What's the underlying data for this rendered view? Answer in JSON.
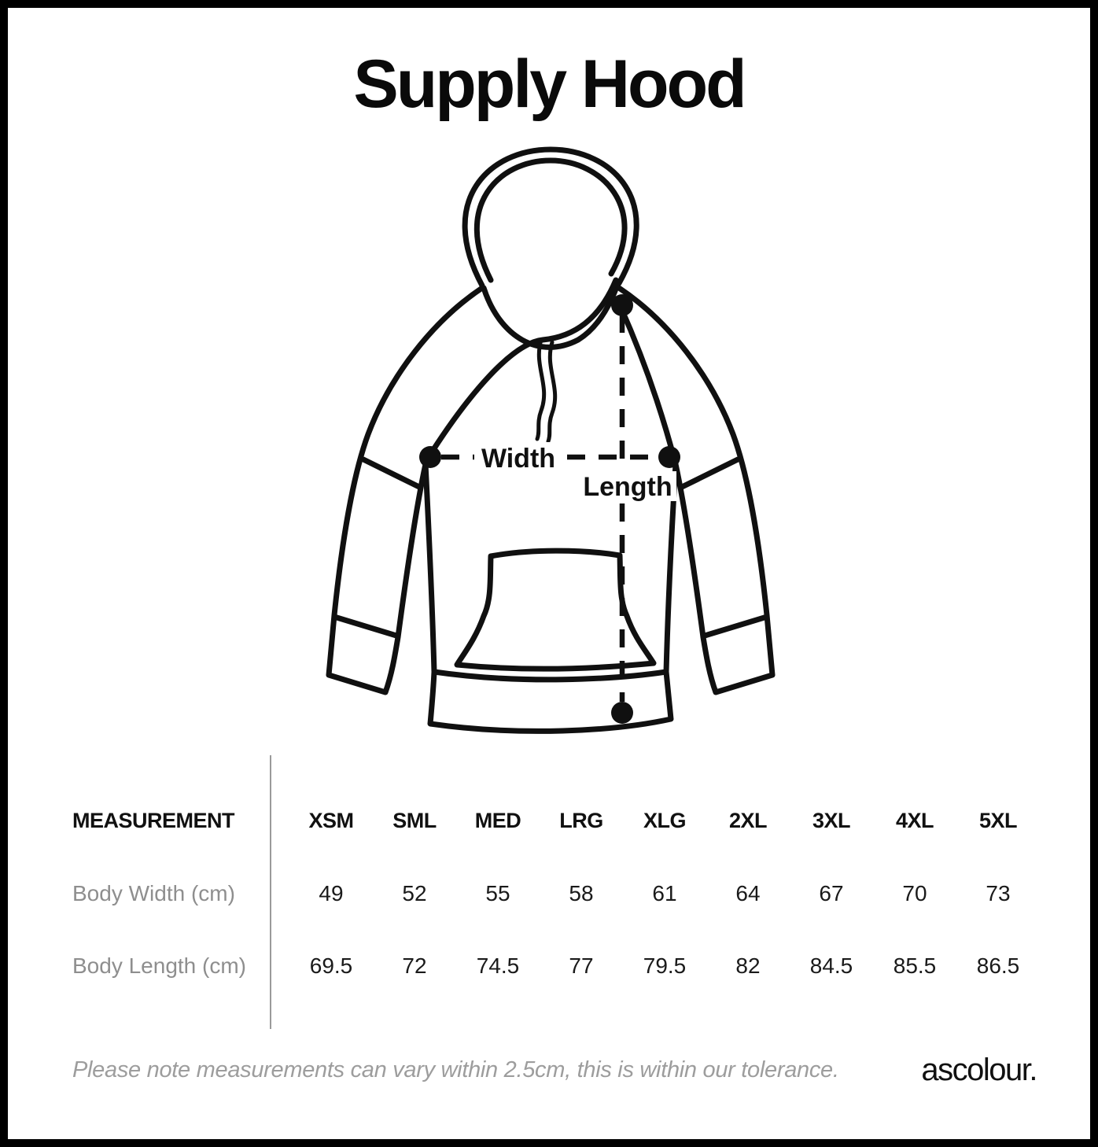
{
  "title": "Supply Hood",
  "diagram": {
    "width_label": "Width",
    "length_label": "Length"
  },
  "table": {
    "measurement_header": "MEASUREMENT",
    "size_headers": [
      "XSM",
      "SML",
      "MED",
      "LRG",
      "XLG",
      "2XL",
      "3XL",
      "4XL",
      "5XL"
    ],
    "rows": [
      {
        "label": "Body Width (cm)",
        "values": [
          "49",
          "52",
          "55",
          "58",
          "61",
          "64",
          "67",
          "70",
          "73"
        ]
      },
      {
        "label": "Body Length (cm)",
        "values": [
          "69.5",
          "72",
          "74.5",
          "77",
          "79.5",
          "82",
          "84.5",
          "85.5",
          "86.5"
        ]
      }
    ]
  },
  "footer": {
    "note": "Please note measurements can vary within 2.5cm, this is within our tolerance.",
    "brand": "ascolour."
  },
  "colors": {
    "line": "#101010",
    "label_gray": "#8e8e8e",
    "note_gray": "#9d9d9d",
    "divider_gray": "#9a9a9a"
  }
}
